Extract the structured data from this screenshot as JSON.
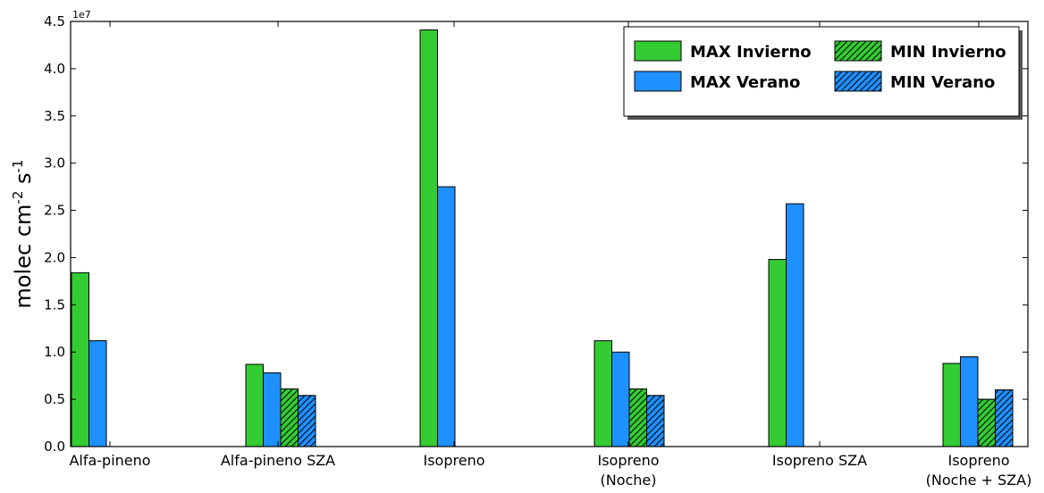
{
  "chart_data": {
    "type": "bar",
    "categories": [
      [
        "Alfa-pineno"
      ],
      [
        "Alfa-pineno SZA"
      ],
      [
        "Isopreno"
      ],
      [
        "Isopreno",
        "(Noche)"
      ],
      [
        "Isopreno SZA"
      ],
      [
        "Isopreno",
        "(Noche + SZA)"
      ]
    ],
    "ylabel": "molec cm",
    "ylabel_exp1": "-2",
    "ylabel_s": " s",
    "ylabel_exp2": "-1",
    "offset_label": "1e7",
    "ylim": [
      0,
      45000000
    ],
    "yticks": [
      0,
      5000000,
      10000000,
      15000000,
      20000000,
      25000000,
      30000000,
      35000000,
      40000000,
      45000000
    ],
    "ytick_labels": [
      "0.0",
      "0.5",
      "1.0",
      "1.5",
      "2.0",
      "2.5",
      "3.0",
      "3.5",
      "4.0",
      "4.5"
    ],
    "series": [
      {
        "name": "MAX Invierno",
        "color": "#33cc33",
        "hatch": false,
        "values": [
          18400000,
          8700000,
          44100000,
          11200000,
          19800000,
          8800000
        ]
      },
      {
        "name": "MAX Verano",
        "color": "#1e90ff",
        "hatch": false,
        "values": [
          11200000,
          7800000,
          27500000,
          10000000,
          25700000,
          9500000
        ]
      },
      {
        "name": "MIN Invierno",
        "color": "#33cc33",
        "hatch": true,
        "values": [
          0,
          6100000,
          0,
          6100000,
          0,
          5000000
        ]
      },
      {
        "name": "MIN Verano",
        "color": "#1e90ff",
        "hatch": true,
        "values": [
          0,
          5400000,
          0,
          5400000,
          0,
          6000000
        ]
      }
    ],
    "legend": {
      "position": "top-right",
      "columns": 2
    },
    "grid": false
  }
}
